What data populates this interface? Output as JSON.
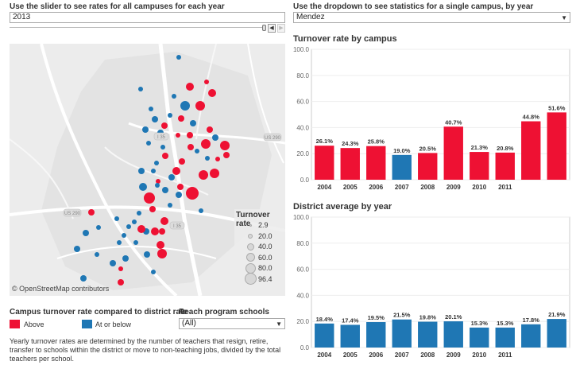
{
  "slider_label": "Use the slider to see rates for all campuses for each year",
  "slider_value": "2013",
  "dropdown_label": "Use the dropdown to see statistics for a single campus, by year",
  "dropdown_value": "Mendez",
  "map": {
    "roads": [
      "US 290",
      "US 290",
      "I 35",
      "I 35"
    ],
    "attribution": "© OpenStreetMap contributors",
    "colors": {
      "above": "#ee1133",
      "below": "#1f77b4",
      "bg": "#ececec"
    },
    "legend_title": "Turnover rate",
    "legend_values": [
      "2.9",
      "20.0",
      "40.0",
      "60.0",
      "80.0",
      "96.4"
    ]
  },
  "color_legend": {
    "title": "Campus turnover rate compared to district rate",
    "above": "Above",
    "below": "At or below",
    "above_color": "#ee1133",
    "below_color": "#1f77b4"
  },
  "reach": {
    "title": "Reach program schools",
    "value": "(All)"
  },
  "footnote": "Yearly turnover rates are determined by the number of teachers that resign, retire, transfer to schools within the district or move to non-teaching jobs, divided by the total teachers per school.",
  "chart_data": [
    {
      "type": "bar",
      "title": "Turnover rate by campus",
      "categories": [
        "2004",
        "2005",
        "2006",
        "2007",
        "2008",
        "2009",
        "2010",
        "2011",
        "",
        ""
      ],
      "values": [
        26.1,
        24.3,
        25.8,
        19.0,
        20.5,
        40.7,
        21.3,
        20.8,
        44.8,
        51.6
      ],
      "labels": [
        "26.1%",
        "24.3%",
        "25.8%",
        "19.0%",
        "20.5%",
        "40.7%",
        "21.3%",
        "20.8%",
        "44.8%",
        "51.6%"
      ],
      "colors": [
        "#ee1133",
        "#ee1133",
        "#ee1133",
        "#1f77b4",
        "#ee1133",
        "#ee1133",
        "#ee1133",
        "#ee1133",
        "#ee1133",
        "#ee1133"
      ],
      "yticks": [
        "0.0",
        "20.0",
        "40.0",
        "60.0",
        "80.0",
        "100.0"
      ],
      "ylim": [
        0,
        100
      ]
    },
    {
      "type": "bar",
      "title": "District average by year",
      "categories": [
        "2004",
        "2005",
        "2006",
        "2007",
        "2008",
        "2009",
        "2010",
        "2011",
        "",
        ""
      ],
      "values": [
        18.4,
        17.4,
        19.5,
        21.5,
        19.8,
        20.1,
        15.3,
        15.3,
        17.8,
        21.9
      ],
      "labels": [
        "18.4%",
        "17.4%",
        "19.5%",
        "21.5%",
        "19.8%",
        "20.1%",
        "15.3%",
        "15.3%",
        "17.8%",
        "21.9%"
      ],
      "colors": [
        "#1f77b4",
        "#1f77b4",
        "#1f77b4",
        "#1f77b4",
        "#1f77b4",
        "#1f77b4",
        "#1f77b4",
        "#1f77b4",
        "#1f77b4",
        "#1f77b4"
      ],
      "yticks": [
        "0.0",
        "20.0",
        "40.0",
        "60.0",
        "80.0",
        "100.0"
      ],
      "ylim": [
        0,
        100
      ]
    }
  ]
}
